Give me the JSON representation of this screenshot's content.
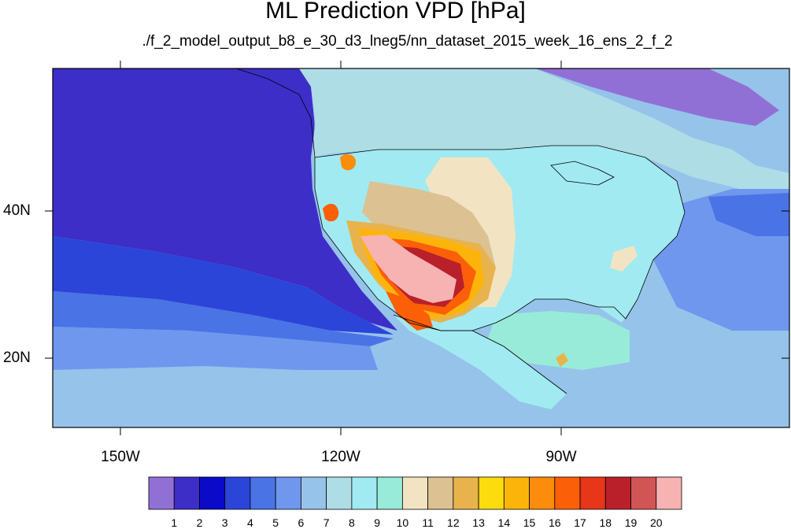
{
  "title": "ML Prediction VPD [hPa]",
  "subtitle": "./f_2_model_output_b8_e_30_d3_lneg5/nn_dataset_2015_week_16_ens_2_f_2",
  "axes": {
    "lon_labels": [
      "150W",
      "120W",
      "90W"
    ],
    "lat_labels": [
      "40N",
      "20N"
    ]
  },
  "colorbar": {
    "labels": [
      "1",
      "2",
      "3",
      "4",
      "5",
      "6",
      "7",
      "8",
      "9",
      "10",
      "11",
      "12",
      "13",
      "14",
      "15",
      "16",
      "17",
      "18",
      "19",
      "20"
    ],
    "colors": [
      "#9170d6",
      "#3d2ec8",
      "#0b0ac8",
      "#2b45d9",
      "#4a73e6",
      "#6f97ee",
      "#96c3ea",
      "#aedde6",
      "#a1eaf2",
      "#98ebd8",
      "#f2e4c2",
      "#dcc192",
      "#e8b34c",
      "#fcdc0d",
      "#fdb40a",
      "#fb8c0c",
      "#fb5f08",
      "#e73618",
      "#b9202a",
      "#d25555",
      "#f7b2b2"
    ]
  },
  "chart_data": {
    "type": "heatmap",
    "title": "ML Prediction VPD [hPa]",
    "subtitle": "./f_2_model_output_b8_e_30_d3_lneg5/nn_dataset_2015_week_16_ens_2_f_2",
    "x_ticks": [
      "150W",
      "120W",
      "90W"
    ],
    "y_ticks": [
      "40N",
      "20N"
    ],
    "color_levels": [
      1,
      2,
      3,
      4,
      5,
      6,
      7,
      8,
      9,
      10,
      11,
      12,
      13,
      14,
      15,
      16,
      17,
      18,
      19,
      20
    ]
  }
}
